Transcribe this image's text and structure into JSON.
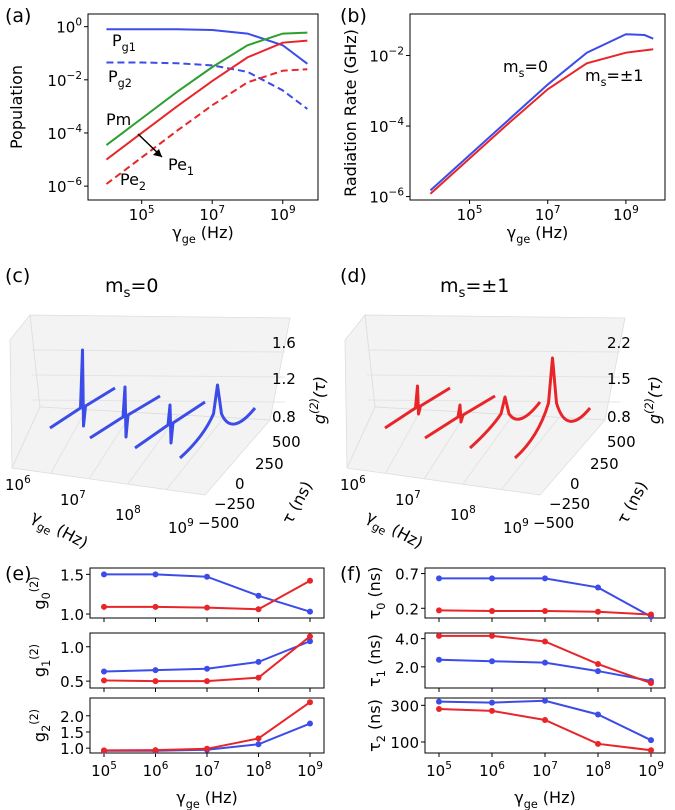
{
  "colors": {
    "blue": "#3b4ce8",
    "red": "#e8262a",
    "green": "#2ca02c"
  },
  "chart_data": [
    {
      "panel": "(a)",
      "type": "line",
      "xlabel": "γge (Hz)",
      "ylabel": "Population",
      "xscale": "log",
      "yscale": "log",
      "xlim": [
        3000,
        10000000000.0
      ],
      "ylim": [
        3e-07,
        3
      ],
      "xticks": [
        "10^5",
        "10^7",
        "10^9"
      ],
      "yticks": [
        "10^0",
        "10^-2",
        "10^-4",
        "10^-6"
      ],
      "series": [
        {
          "name": "Pg1",
          "color": "blue",
          "dash": false,
          "x": [
            10000,
            100000,
            1000000,
            10000000,
            100000000,
            1000000000,
            5000000000
          ],
          "y": [
            0.8,
            0.8,
            0.8,
            0.75,
            0.55,
            0.2,
            0.04
          ]
        },
        {
          "name": "Pg2",
          "color": "blue",
          "dash": true,
          "x": [
            10000,
            100000,
            1000000,
            10000000,
            100000000,
            1000000000,
            5000000000
          ],
          "y": [
            0.045,
            0.045,
            0.042,
            0.035,
            0.02,
            0.004,
            0.0008
          ]
        },
        {
          "name": "Pm",
          "color": "green",
          "dash": false,
          "x": [
            10000,
            100000,
            1000000,
            10000000,
            100000000,
            1000000000,
            5000000000
          ],
          "y": [
            3.5e-05,
            0.00035,
            0.0035,
            0.03,
            0.2,
            0.55,
            0.6
          ]
        },
        {
          "name": "Pe1",
          "color": "red",
          "dash": false,
          "x": [
            10000,
            100000,
            1000000,
            10000000,
            100000000,
            1000000000,
            5000000000
          ],
          "y": [
            1e-05,
            0.0001,
            0.001,
            0.009,
            0.07,
            0.25,
            0.3
          ]
        },
        {
          "name": "Pe2",
          "color": "red",
          "dash": true,
          "x": [
            10000,
            100000,
            1000000,
            10000000,
            100000000,
            1000000000,
            5000000000
          ],
          "y": [
            1.2e-06,
            1.2e-05,
            0.00012,
            0.0011,
            0.008,
            0.022,
            0.025
          ]
        }
      ],
      "labels": {
        "pg1": [
          "P",
          "g",
          "1"
        ],
        "pg2": [
          "P",
          "g",
          "2"
        ],
        "pm": "Pm",
        "pe1": [
          "Pe",
          "1"
        ],
        "pe2": [
          "Pe",
          "2"
        ]
      }
    },
    {
      "panel": "(b)",
      "type": "line",
      "xlabel": "γge (Hz)",
      "ylabel": "Radiation Rate (GHz)",
      "xscale": "log",
      "yscale": "log",
      "xlim": [
        3000,
        10000000000.0
      ],
      "ylim": [
        8e-07,
        0.15
      ],
      "xticks": [
        "10^5",
        "10^7",
        "10^9"
      ],
      "yticks": [
        "10^-2",
        "10^-4",
        "10^-6"
      ],
      "series": [
        {
          "name": "ms=0",
          "color": "blue",
          "x": [
            10000,
            100000,
            1000000,
            10000000,
            100000000,
            1000000000,
            3000000000,
            5000000000
          ],
          "y": [
            1.5e-06,
            1.5e-05,
            0.00015,
            0.0015,
            0.012,
            0.04,
            0.038,
            0.03
          ]
        },
        {
          "name": "ms=±1",
          "color": "red",
          "x": [
            10000,
            100000,
            1000000,
            10000000,
            100000000,
            1000000000,
            3000000000,
            5000000000
          ],
          "y": [
            1.2e-06,
            1.2e-05,
            0.00012,
            0.0011,
            0.006,
            0.012,
            0.014,
            0.015
          ]
        }
      ],
      "labels": {
        "ms0": [
          "m",
          "s",
          "=0"
        ],
        "ms1": [
          "m",
          "s",
          "=±1"
        ]
      }
    },
    {
      "panel": "(c)",
      "type": "line-3d",
      "title": "ms=0",
      "zlabel": "g(2)(τ)",
      "xlabel": "γge (Hz)",
      "ylabel": "τ (ns)",
      "zticks": [
        "1.6",
        "1.2",
        "0.8"
      ],
      "xticks": [
        "10^6",
        "10^7",
        "10^8",
        "10^9"
      ],
      "yticks": [
        "500",
        "250",
        "0",
        "-250",
        "-500"
      ],
      "series_color": "blue"
    },
    {
      "panel": "(d)",
      "type": "line-3d",
      "title": "ms=±1",
      "zlabel": "g(2)(τ)",
      "xlabel": "γge (Hz)",
      "ylabel": "τ (ns)",
      "zticks": [
        "2.2",
        "1.5",
        "0.8"
      ],
      "xticks": [
        "10^6",
        "10^7",
        "10^8",
        "10^9"
      ],
      "yticks": [
        "500",
        "250",
        "0",
        "-250",
        "-500"
      ],
      "series_color": "red"
    },
    {
      "panel": "(e)",
      "type": "line",
      "xlabel": "γge (Hz)",
      "x": [
        100000,
        1000000,
        10000000,
        100000000,
        1000000000
      ],
      "xticks": [
        "10^5",
        "10^6",
        "10^7",
        "10^8",
        "10^9"
      ],
      "subplots": [
        {
          "ylabel": "g0(2)",
          "ylim": [
            0.95,
            1.58
          ],
          "yticks": [
            "1.5",
            "1.0"
          ],
          "series": [
            {
              "name": "ms=0",
              "color": "blue",
              "values": [
                1.5,
                1.5,
                1.47,
                1.23,
                1.03
              ]
            },
            {
              "name": "ms=±1",
              "color": "red",
              "values": [
                1.09,
                1.09,
                1.08,
                1.06,
                1.42
              ]
            }
          ]
        },
        {
          "ylabel": "g1(2)",
          "ylim": [
            0.4,
            1.2
          ],
          "yticks": [
            "1.0",
            "0.5"
          ],
          "series": [
            {
              "name": "ms=0",
              "color": "blue",
              "values": [
                0.64,
                0.66,
                0.68,
                0.78,
                1.08
              ]
            },
            {
              "name": "ms=±1",
              "color": "red",
              "values": [
                0.51,
                0.5,
                0.5,
                0.55,
                1.15
              ]
            }
          ]
        },
        {
          "ylabel": "g2(2)",
          "ylim": [
            0.85,
            2.55
          ],
          "yticks": [
            "2.0",
            "1.5",
            "1.0"
          ],
          "series": [
            {
              "name": "ms=0",
              "color": "blue",
              "values": [
                0.92,
                0.92,
                0.95,
                1.12,
                1.76
              ]
            },
            {
              "name": "ms=±1",
              "color": "red",
              "values": [
                0.93,
                0.94,
                0.98,
                1.3,
                2.42
              ]
            }
          ]
        }
      ]
    },
    {
      "panel": "(f)",
      "type": "line",
      "xlabel": "γge (Hz)",
      "x": [
        100000,
        1000000,
        10000000,
        100000000,
        1000000000
      ],
      "xticks": [
        "10^5",
        "10^6",
        "10^7",
        "10^8",
        "10^9"
      ],
      "subplots": [
        {
          "ylabel": "τ0 (ns)",
          "ylim": [
            0.06,
            0.78
          ],
          "yticks": [
            "0.7",
            "0.2"
          ],
          "series": [
            {
              "name": "ms=0",
              "color": "blue",
              "values": [
                0.63,
                0.63,
                0.63,
                0.5,
                0.08
              ]
            },
            {
              "name": "ms=±1",
              "color": "red",
              "values": [
                0.17,
                0.16,
                0.16,
                0.15,
                0.11
              ]
            }
          ]
        },
        {
          "ylabel": "τ1 (ns)",
          "ylim": [
            0.5,
            4.4
          ],
          "yticks": [
            "4.0",
            "2.0"
          ],
          "series": [
            {
              "name": "ms=0",
              "color": "blue",
              "values": [
                2.5,
                2.4,
                2.3,
                1.7,
                1.0
              ]
            },
            {
              "name": "ms=±1",
              "color": "red",
              "values": [
                4.2,
                4.2,
                3.8,
                2.2,
                0.85
              ]
            }
          ]
        },
        {
          "ylabel": "τ2 (ns)",
          "ylim": [
            40,
            340
          ],
          "yticks": [
            "300",
            "100"
          ],
          "series": [
            {
              "name": "ms=0",
              "color": "blue",
              "values": [
                320,
                315,
                325,
                250,
                110
              ]
            },
            {
              "name": "ms=±1",
              "color": "red",
              "values": [
                280,
                270,
                220,
                90,
                55
              ]
            }
          ]
        }
      ]
    }
  ]
}
